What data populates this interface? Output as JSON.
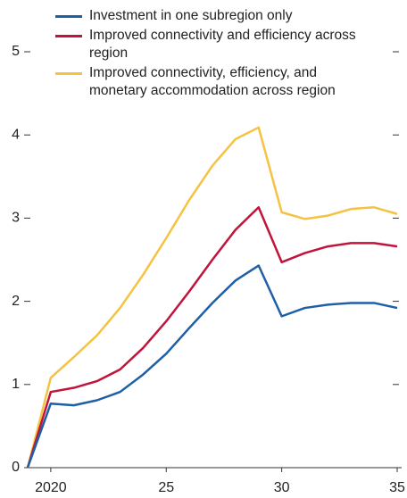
{
  "chart_data": {
    "type": "line",
    "x": [
      2019,
      2020,
      2021,
      2022,
      2023,
      2024,
      2025,
      2026,
      2027,
      2028,
      2029,
      2030,
      2031,
      2032,
      2033,
      2034,
      2035
    ],
    "series": [
      {
        "name": "Investment in one subregion only",
        "color": "#1f5fa6",
        "values": [
          0,
          0.77,
          0.75,
          0.81,
          0.91,
          1.12,
          1.37,
          1.68,
          1.98,
          2.25,
          2.43,
          1.82,
          1.92,
          1.96,
          1.98,
          1.98,
          1.92
        ]
      },
      {
        "name": "Improved connectivity and efficiency across region",
        "color": "#c0143c",
        "values": [
          0,
          0.91,
          0.96,
          1.04,
          1.18,
          1.44,
          1.76,
          2.12,
          2.5,
          2.86,
          3.13,
          2.47,
          2.58,
          2.66,
          2.7,
          2.7,
          2.66
        ]
      },
      {
        "name": "Improved connectivity, efficiency, and monetary accommodation across region",
        "color": "#f5c242",
        "values": [
          0,
          1.08,
          1.33,
          1.59,
          1.92,
          2.32,
          2.76,
          3.22,
          3.63,
          3.95,
          4.09,
          3.07,
          2.99,
          3.03,
          3.11,
          3.13,
          3.05
        ]
      }
    ],
    "xlim": [
      2019,
      2035
    ],
    "xticks": [
      {
        "value": 2020,
        "label": "2020"
      },
      {
        "value": 2025,
        "label": "25"
      },
      {
        "value": 2030,
        "label": "30"
      },
      {
        "value": 2035,
        "label": "35"
      }
    ],
    "ylim": [
      0,
      5
    ],
    "yticks": [
      0,
      1,
      2,
      3,
      4,
      5
    ]
  }
}
